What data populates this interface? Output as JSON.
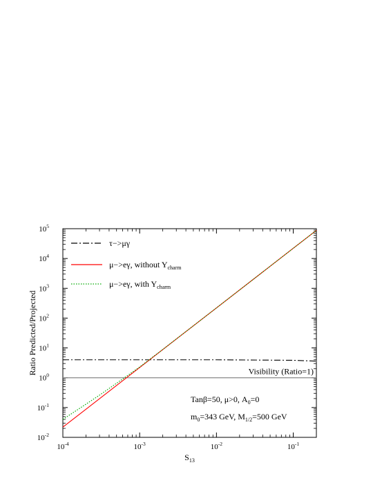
{
  "chart_data": {
    "type": "line",
    "x_scale": "log",
    "y_scale": "log",
    "xlim": [
      0.0001,
      0.2
    ],
    "ylim": [
      0.01,
      100000
    ],
    "xlabel": {
      "main": "S",
      "sub": "13"
    },
    "ylabel": "Ratio Predicted/Projected",
    "x_ticks": [
      {
        "value": 0.0001,
        "base": "10",
        "exp": "-4"
      },
      {
        "value": 0.001,
        "base": "10",
        "exp": "-3"
      },
      {
        "value": 0.01,
        "base": "10",
        "exp": "-2"
      },
      {
        "value": 0.1,
        "base": "10",
        "exp": "-1"
      }
    ],
    "y_ticks": [
      {
        "value": 0.01,
        "base": "10",
        "exp": "-2"
      },
      {
        "value": 0.1,
        "base": "10",
        "exp": "-1"
      },
      {
        "value": 1,
        "base": "10",
        "exp": "0"
      },
      {
        "value": 10,
        "base": "10",
        "exp": "1"
      },
      {
        "value": 100,
        "base": "10",
        "exp": "2"
      },
      {
        "value": 1000,
        "base": "10",
        "exp": "3"
      },
      {
        "value": 10000,
        "base": "10",
        "exp": "4"
      },
      {
        "value": 100000,
        "base": "10",
        "exp": "5"
      }
    ],
    "series": [
      {
        "name": "τ−>μγ",
        "style": "dash-dot",
        "color": "#000000",
        "x": [
          0.0001,
          0.001,
          0.01,
          0.1,
          0.2
        ],
        "y": [
          4.0,
          4.0,
          4.0,
          3.85,
          3.6
        ]
      },
      {
        "name": "μ−>eγ, without Y",
        "name_sub": "charm",
        "style": "solid",
        "color": "#ff0000",
        "x": [
          0.0001,
          0.001,
          0.01,
          0.1,
          0.2
        ],
        "y": [
          0.022,
          2.2,
          220,
          22000,
          88000
        ]
      },
      {
        "name": "μ−>eγ, with Y",
        "name_sub": "charm",
        "style": "dotted",
        "color": "#00aa00",
        "x": [
          0.0001,
          0.0002,
          0.0003,
          0.0005,
          0.0007,
          0.001,
          0.002,
          0.01,
          0.1,
          0.2
        ],
        "y": [
          0.04,
          0.13,
          0.26,
          0.65,
          1.2,
          2.3,
          8.9,
          220,
          22000,
          88000
        ]
      }
    ],
    "reference_line": {
      "y": 1,
      "color": "#888888",
      "label": "Visibility (Ratio=1)"
    },
    "annotations": [
      {
        "parts": [
          {
            "t": "Tanβ=50, μ>0, A"
          },
          {
            "t": "0",
            "sub": true
          },
          {
            "t": "=0"
          }
        ]
      },
      {
        "parts": [
          {
            "t": "m"
          },
          {
            "t": "0",
            "sub": true
          },
          {
            "t": "=343 GeV, M"
          },
          {
            "t": "1/2",
            "sub": true
          },
          {
            "t": "=500 GeV"
          }
        ]
      }
    ],
    "legend_position": "top-left",
    "grid": false
  }
}
